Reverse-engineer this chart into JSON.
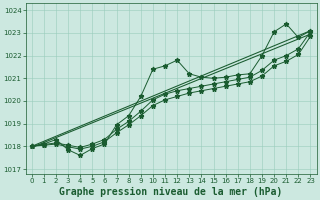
{
  "bg_color": "#cce8e0",
  "grid_color": "#99ccbb",
  "line_color": "#1a5c30",
  "x": [
    0,
    1,
    2,
    3,
    4,
    5,
    6,
    7,
    8,
    9,
    10,
    11,
    12,
    13,
    14,
    15,
    16,
    17,
    18,
    19,
    20,
    21,
    22,
    23
  ],
  "y_main": [
    1018.0,
    1018.1,
    1018.3,
    1017.85,
    1017.6,
    1017.9,
    1018.1,
    1018.95,
    1019.35,
    1020.2,
    1021.4,
    1021.55,
    1021.8,
    1021.2,
    1021.05,
    1021.0,
    1021.05,
    1021.15,
    1021.2,
    1022.0,
    1023.05,
    1023.4,
    1022.8,
    1023.1
  ],
  "y_smooth1": [
    1018.0,
    1018.08,
    1018.15,
    1018.05,
    1017.95,
    1018.1,
    1018.3,
    1018.75,
    1019.1,
    1019.55,
    1020.05,
    1020.3,
    1020.45,
    1020.55,
    1020.65,
    1020.75,
    1020.85,
    1020.95,
    1021.05,
    1021.35,
    1021.8,
    1022.0,
    1022.3,
    1023.05
  ],
  "y_smooth2": [
    1018.0,
    1018.05,
    1018.1,
    1017.98,
    1017.88,
    1018.0,
    1018.2,
    1018.6,
    1018.95,
    1019.35,
    1019.8,
    1020.05,
    1020.2,
    1020.35,
    1020.45,
    1020.55,
    1020.65,
    1020.75,
    1020.85,
    1021.1,
    1021.55,
    1021.75,
    1022.05,
    1022.85
  ],
  "trend1_x": [
    0,
    23
  ],
  "trend1_y": [
    1018.0,
    1023.1
  ],
  "trend2_x": [
    0,
    23
  ],
  "trend2_y": [
    1017.95,
    1022.95
  ],
  "ylim": [
    1016.8,
    1024.3
  ],
  "xlim": [
    -0.5,
    23.5
  ],
  "yticks": [
    1017,
    1018,
    1019,
    1020,
    1021,
    1022,
    1023,
    1024
  ],
  "xticks": [
    0,
    1,
    2,
    3,
    4,
    5,
    6,
    7,
    8,
    9,
    10,
    11,
    12,
    13,
    14,
    15,
    16,
    17,
    18,
    19,
    20,
    21,
    22,
    23
  ],
  "xlabel": "Graphe pression niveau de la mer (hPa)",
  "xlabel_fontsize": 7.0,
  "tick_fontsize": 5.0,
  "marker": "*",
  "markersize": 3.5,
  "linewidth": 0.7,
  "figsize": [
    3.2,
    2.0
  ],
  "dpi": 100
}
